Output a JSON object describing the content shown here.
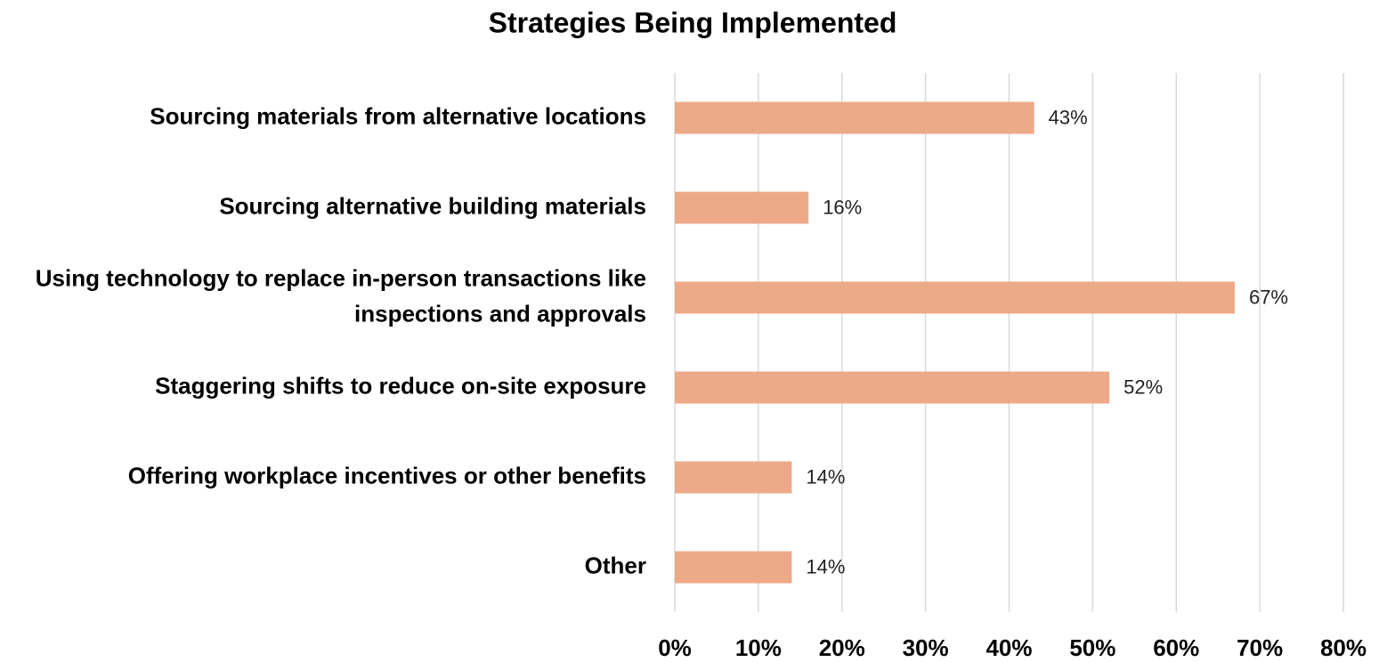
{
  "chart_data": {
    "type": "bar",
    "orientation": "horizontal",
    "title": "Strategies Being Implemented",
    "categories": [
      "Sourcing materials from alternative locations",
      "Sourcing alternative building materials",
      "Using technology to replace in-person transactions like inspections and approvals",
      "Staggering shifts to reduce on-site exposure",
      "Offering workplace incentives or other benefits",
      "Other"
    ],
    "values": [
      43,
      16,
      67,
      52,
      14,
      14
    ],
    "value_labels": [
      "43%",
      "16%",
      "67%",
      "52%",
      "14%",
      "14%"
    ],
    "color": "#edaa89",
    "xlim": [
      0,
      80
    ],
    "xticks": [
      {
        "value": 0,
        "label": "0%"
      },
      {
        "value": 10,
        "label": "10%"
      },
      {
        "value": 20,
        "label": "20%"
      },
      {
        "value": 30,
        "label": "30%"
      },
      {
        "value": 40,
        "label": "40%"
      },
      {
        "value": 50,
        "label": "50%"
      },
      {
        "value": 60,
        "label": "60%"
      },
      {
        "value": 70,
        "label": "70%"
      },
      {
        "value": 80,
        "label": "80%"
      }
    ],
    "grid": true
  }
}
